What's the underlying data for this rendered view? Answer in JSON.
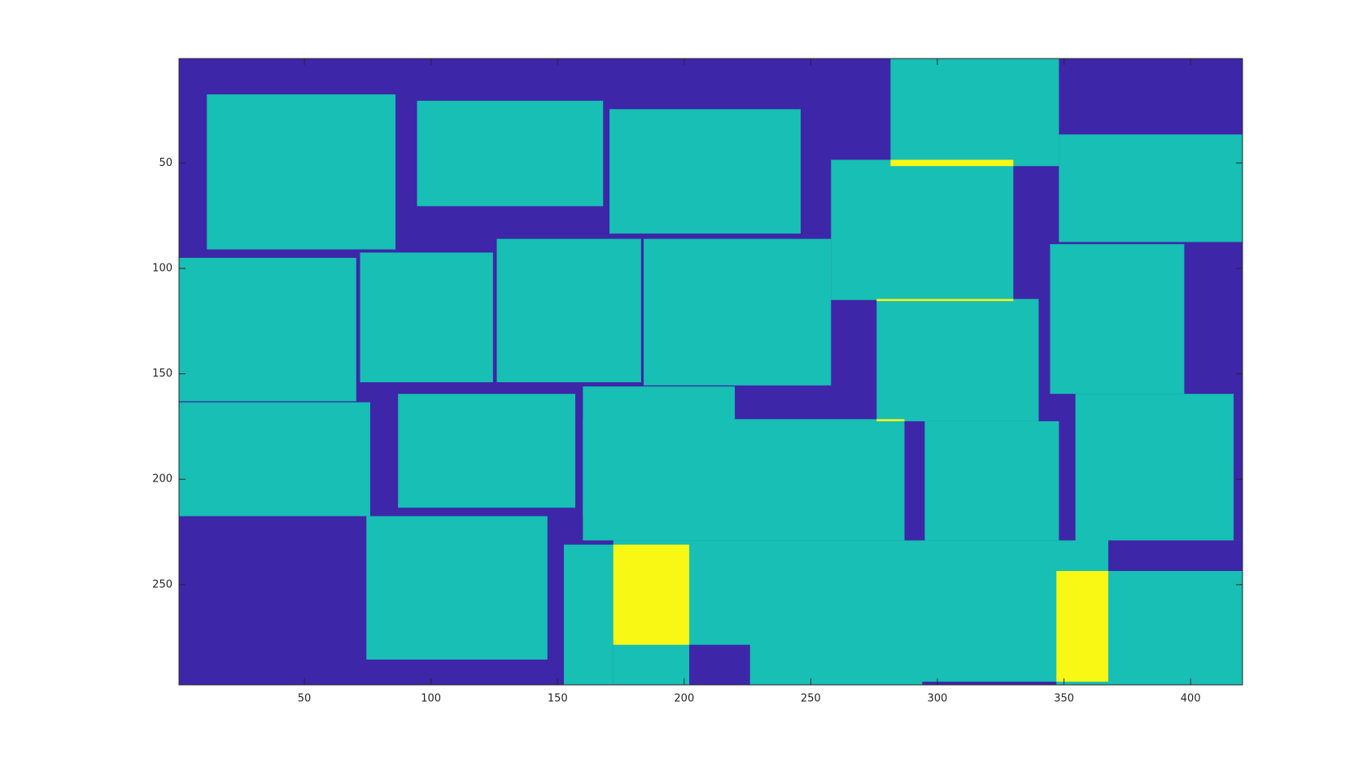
{
  "chart_data": {
    "type": "heatmap",
    "xlim": [
      0.5,
      420.5
    ],
    "ylim": [
      0.5,
      297.5
    ],
    "y_reversed": true,
    "xticks": [
      50,
      100,
      150,
      200,
      250,
      300,
      350,
      400
    ],
    "yticks": [
      50,
      100,
      150,
      200,
      250
    ],
    "colors": [
      "#3e26a8",
      "#17bfb4",
      "#f9f815"
    ],
    "rects": [
      {
        "x": [
          0.5,
          420.5
        ],
        "y": [
          0.5,
          297.5
        ],
        "value": 0
      },
      {
        "x": [
          11.5,
          86
        ],
        "y": [
          17.5,
          91
        ],
        "value": 1
      },
      {
        "x": [
          94.5,
          168
        ],
        "y": [
          20.5,
          70.5
        ],
        "value": 1
      },
      {
        "x": [
          170.5,
          246
        ],
        "y": [
          24.5,
          83.5
        ],
        "value": 1
      },
      {
        "x": [
          281.5,
          348
        ],
        "y": [
          0.5,
          51.5
        ],
        "value": 1
      },
      {
        "x": [
          348,
          420.5
        ],
        "y": [
          36.5,
          87.5
        ],
        "value": 1
      },
      {
        "x": [
          258,
          330
        ],
        "y": [
          48.5,
          115
        ],
        "value": 1
      },
      {
        "x": [
          0.5,
          70.5
        ],
        "y": [
          95,
          163
        ],
        "value": 1
      },
      {
        "x": [
          72,
          124.5
        ],
        "y": [
          92.5,
          154
        ],
        "value": 1
      },
      {
        "x": [
          126,
          183
        ],
        "y": [
          86,
          154
        ],
        "value": 1
      },
      {
        "x": [
          184,
          258
        ],
        "y": [
          86,
          155.5
        ],
        "value": 1
      },
      {
        "x": [
          276,
          340
        ],
        "y": [
          114.5,
          172.5
        ],
        "value": 1
      },
      {
        "x": [
          344.5,
          397.5
        ],
        "y": [
          88.5,
          159.5
        ],
        "value": 1
      },
      {
        "x": [
          0.5,
          76
        ],
        "y": [
          163.5,
          217.5
        ],
        "value": 1
      },
      {
        "x": [
          87,
          157
        ],
        "y": [
          159.5,
          213.5
        ],
        "value": 1
      },
      {
        "x": [
          160,
          220
        ],
        "y": [
          156,
          217.5
        ],
        "value": 1
      },
      {
        "x": [
          160,
          287
        ],
        "y": [
          171.5,
          229
        ],
        "value": 1
      },
      {
        "x": [
          295,
          348
        ],
        "y": [
          172.5,
          229
        ],
        "value": 1
      },
      {
        "x": [
          354.5,
          417
        ],
        "y": [
          159.5,
          229.5
        ],
        "value": 1
      },
      {
        "x": [
          172,
          420.5
        ],
        "y": [
          229,
          297.5
        ],
        "value": 1
      },
      {
        "x": [
          152.5,
          172
        ],
        "y": [
          231,
          297.5
        ],
        "value": 1
      },
      {
        "x": [
          74.5,
          146
        ],
        "y": [
          217.5,
          285.5
        ],
        "value": 1
      },
      {
        "x": [
          367.5,
          420.5
        ],
        "y": [
          229,
          243.5
        ],
        "value": 0
      },
      {
        "x": [
          202,
          226
        ],
        "y": [
          278.5,
          297.5
        ],
        "value": 0
      },
      {
        "x": [
          294,
          347
        ],
        "y": [
          296,
          297.5
        ],
        "value": 0
      },
      {
        "x": [
          172,
          202
        ],
        "y": [
          231,
          278.5
        ],
        "value": 2
      },
      {
        "x": [
          347,
          367.5
        ],
        "y": [
          243.5,
          296
        ],
        "value": 2
      },
      {
        "x": [
          281.5,
          330
        ],
        "y": [
          48.5,
          51.5
        ],
        "value": 2
      },
      {
        "x": [
          276,
          330
        ],
        "y": [
          114.5,
          115.5
        ],
        "value": 2
      },
      {
        "x": [
          276,
          287
        ],
        "y": [
          171.5,
          172.5
        ],
        "value": 2
      }
    ]
  }
}
